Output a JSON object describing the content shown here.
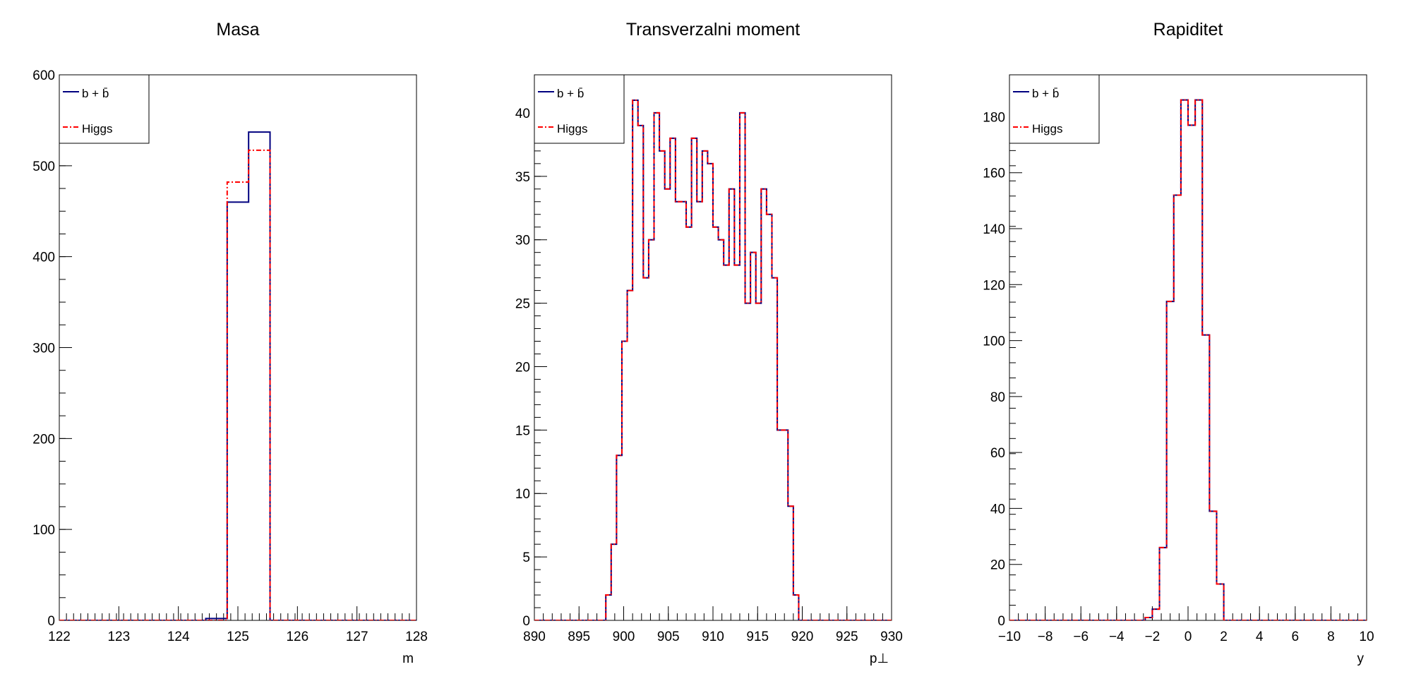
{
  "chart_data": [
    {
      "type": "histogram",
      "title": "Masa",
      "xlabel": "m",
      "ylabel": "",
      "xlim": [
        122,
        128
      ],
      "ylim": [
        0,
        600
      ],
      "x_ticks": [
        "122",
        "123",
        "124",
        "125",
        "126",
        "127",
        "128"
      ],
      "y_ticks": [
        "0",
        "100",
        "200",
        "300",
        "400",
        "500",
        "600"
      ],
      "legend_position": "top-left",
      "bin_width": 0.36,
      "series": [
        {
          "name": "b + b̄",
          "color": "#00007f",
          "line": "solid",
          "bins": [
            [
              124.46,
              124.82,
              2
            ],
            [
              124.82,
              125.18,
              460
            ],
            [
              125.18,
              125.54,
              537
            ]
          ]
        },
        {
          "name": "Higgs",
          "color": "#ff0000",
          "line": "dash-dot",
          "bins": [
            [
              124.82,
              125.18,
              482
            ],
            [
              125.18,
              125.54,
              517
            ]
          ]
        }
      ]
    },
    {
      "type": "histogram",
      "title": "Transverzalni moment",
      "xlabel": "p⊥",
      "ylabel": "",
      "xlim": [
        890,
        930
      ],
      "ylim": [
        0,
        43
      ],
      "x_ticks": [
        "890",
        "895",
        "900",
        "905",
        "910",
        "915",
        "920",
        "925",
        "930"
      ],
      "y_ticks": [
        "0",
        "5",
        "10",
        "15",
        "20",
        "25",
        "30",
        "35",
        "40"
      ],
      "legend_position": "top-left",
      "bin_start": 898,
      "bin_width": 0.6,
      "series": [
        {
          "name": "b + b̄",
          "color": "#00007f",
          "line": "solid",
          "values": [
            2,
            6,
            13,
            22,
            26,
            41,
            39,
            27,
            30,
            40,
            37,
            34,
            38,
            33,
            33,
            31,
            38,
            33,
            37,
            36,
            31,
            30,
            28,
            34,
            28,
            40,
            25,
            29,
            25,
            34,
            32,
            27,
            15,
            15,
            9,
            2,
            0
          ]
        },
        {
          "name": "Higgs",
          "color": "#ff0000",
          "line": "dash-dot",
          "values": [
            2,
            6,
            13,
            22,
            26,
            41,
            39,
            27,
            30,
            40,
            37,
            34,
            38,
            33,
            33,
            31,
            38,
            33,
            37,
            36,
            31,
            30,
            28,
            34,
            28,
            40,
            25,
            29,
            25,
            34,
            32,
            27,
            15,
            15,
            9,
            2,
            0
          ]
        }
      ]
    },
    {
      "type": "histogram",
      "title": "Rapiditet",
      "xlabel": "y",
      "ylabel": "",
      "xlim": [
        -10,
        10
      ],
      "ylim": [
        0,
        195
      ],
      "x_ticks": [
        "−10",
        "−8",
        "−6",
        "−4",
        "−2",
        "0",
        "2",
        "4",
        "6",
        "8",
        "10"
      ],
      "y_ticks": [
        "0",
        "20",
        "40",
        "60",
        "80",
        "100",
        "120",
        "140",
        "160",
        "180"
      ],
      "legend_position": "top-left",
      "bin_start": -2.4,
      "bin_width": 0.4,
      "series": [
        {
          "name": "b + b̄",
          "color": "#00007f",
          "line": "solid",
          "values": [
            1,
            4,
            26,
            114,
            152,
            186,
            177,
            186,
            102,
            39,
            13,
            0
          ]
        },
        {
          "name": "Higgs",
          "color": "#ff0000",
          "line": "dash-dot",
          "values": [
            1,
            4,
            26,
            114,
            152,
            186,
            177,
            186,
            102,
            39,
            13,
            0
          ]
        }
      ]
    }
  ]
}
